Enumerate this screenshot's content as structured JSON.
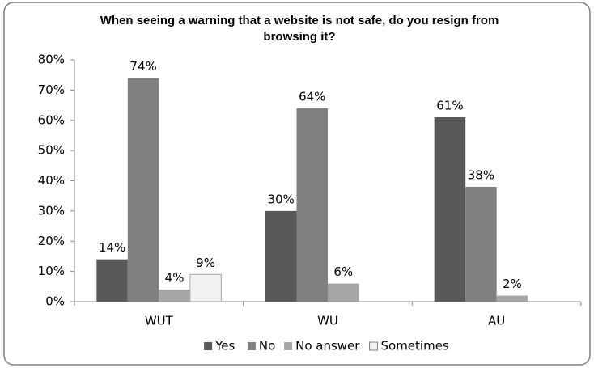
{
  "chart_data": {
    "type": "bar",
    "title": "When seeing a warning that a website is not safe, do you resign from browsing it?",
    "categories": [
      "WUT",
      "WU",
      "AU"
    ],
    "series": [
      {
        "name": "Yes",
        "color": "#595959",
        "values": [
          14,
          30,
          61
        ],
        "value_labels": [
          "14%",
          "30%",
          "61%"
        ]
      },
      {
        "name": "No",
        "color": "#808080",
        "values": [
          74,
          64,
          38
        ],
        "value_labels": [
          "74%",
          "64%",
          "38%"
        ]
      },
      {
        "name": "No answer",
        "color": "#a6a6a6",
        "values": [
          4,
          6,
          2
        ],
        "value_labels": [
          "4%",
          "6%",
          "2%"
        ]
      },
      {
        "name": "Sometimes",
        "color": "#f2f2f2",
        "values": [
          9,
          null,
          null
        ],
        "value_labels": [
          "9%",
          null,
          null
        ]
      }
    ],
    "ylim": [
      0,
      80
    ],
    "yticks": [
      {
        "value": 0,
        "label": "0%"
      },
      {
        "value": 10,
        "label": "10%"
      },
      {
        "value": 20,
        "label": "20%"
      },
      {
        "value": 30,
        "label": "30%"
      },
      {
        "value": 40,
        "label": "40%"
      },
      {
        "value": 50,
        "label": "50%"
      },
      {
        "value": 60,
        "label": "60%"
      },
      {
        "value": 70,
        "label": "70%"
      },
      {
        "value": 80,
        "label": "80%"
      }
    ],
    "legend": "bottom"
  }
}
